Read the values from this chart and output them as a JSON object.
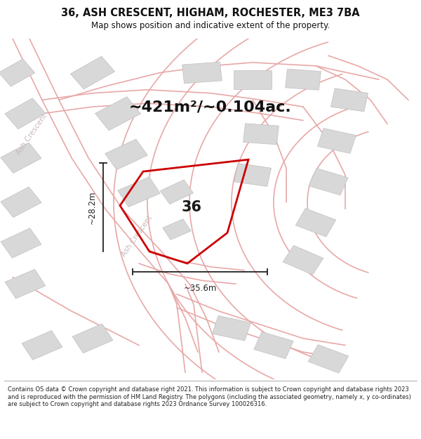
{
  "title": "36, ASH CRESCENT, HIGHAM, ROCHESTER, ME3 7BA",
  "subtitle": "Map shows position and indicative extent of the property.",
  "area_text": "~421m²/~0.104ac.",
  "label_36": "36",
  "dim_v": "~28.2m",
  "dim_h": "~35.6m",
  "copyright": "Contains OS data © Crown copyright and database right 2021. This information is subject to Crown copyright and database rights 2023 and is reproduced with the permission of HM Land Registry. The polygons (including the associated geometry, namely x, y co-ordinates) are subject to Crown copyright and database rights 2023 Ordnance Survey 100026316.",
  "bg_color": "#ffffff",
  "map_bg": "#ffffff",
  "road_color": "#e8a8a8",
  "building_color": "#d8d8d8",
  "building_outline": "#c0c0c0",
  "property_color": "#cc0000",
  "dim_color": "#222222",
  "road_label_color": "#c8b8b8",
  "title_color": "#111111",
  "copyright_color": "#222222",
  "figsize": [
    6.0,
    6.25
  ],
  "dpi": 100
}
